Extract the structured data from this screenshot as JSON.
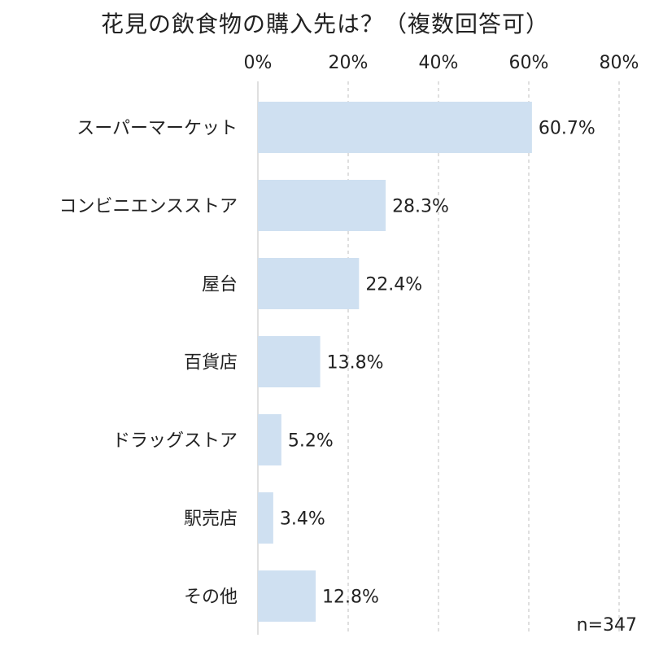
{
  "chart_data": {
    "type": "bar",
    "orientation": "horizontal",
    "title": "花見の飲食物の購入先は？（複数回答可）",
    "categories": [
      "スーパーマーケット",
      "コンビニエンスストア",
      "屋台",
      "百貨店",
      "ドラッグストア",
      "駅売店",
      "その他"
    ],
    "values": [
      60.7,
      28.3,
      22.4,
      13.8,
      5.2,
      3.4,
      12.8
    ],
    "value_labels": [
      "60.7%",
      "28.3%",
      "22.4%",
      "13.8%",
      "5.2%",
      "3.4%",
      "12.8%"
    ],
    "xlim": [
      0,
      80
    ],
    "xticks": [
      0,
      20,
      40,
      60,
      80
    ],
    "xtick_labels": [
      "0%",
      "20%",
      "40%",
      "60%",
      "80%"
    ],
    "xaxis_position": "top",
    "grid": true,
    "bar_color": "#cfe0f1",
    "grid_color": "#bfbfbf",
    "note": "n=347"
  }
}
